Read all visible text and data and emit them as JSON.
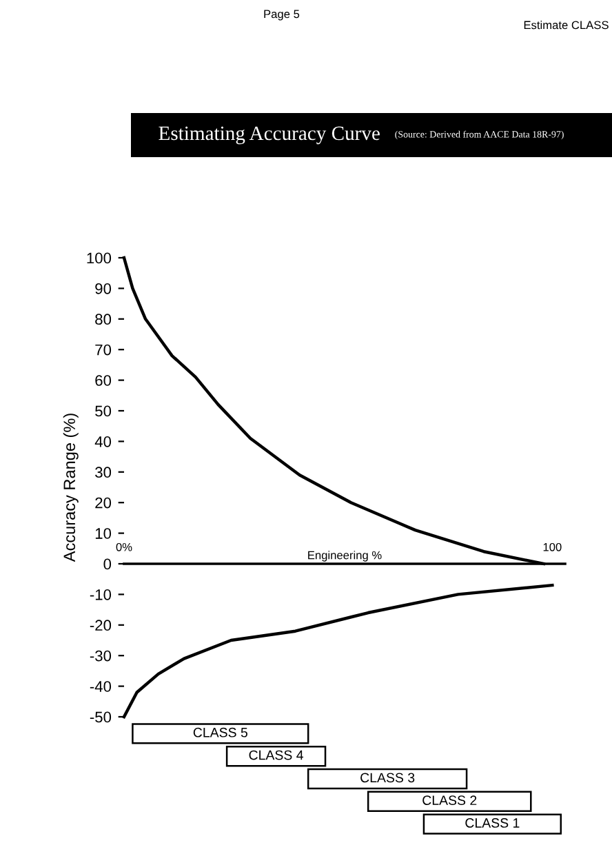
{
  "chart_data": [
    {
      "type": "line",
      "title": "Estimating Accuracy Curve",
      "subtitle": "(Source: Derived from AACE Data 18R-97)",
      "xlabel": "Engineering %",
      "ylabel": "Accuracy Range (%)",
      "annotations": [
        "Page 5",
        "Estimate CLASS"
      ],
      "series": [
        {
          "color": "#000000",
          "x": [
            0,
            2,
            5,
            11.2,
            16.7,
            22,
            29.5,
            41,
            53,
            68,
            84,
            98
          ],
          "values": [
            100,
            90,
            80,
            68,
            61,
            52,
            41,
            29,
            20,
            11,
            4,
            0
          ]
        },
        {
          "color": "#000000",
          "x": [
            0,
            3,
            8,
            14,
            25,
            40,
            57,
            78,
            100
          ],
          "values": [
            -50,
            -42,
            -36,
            -31,
            -25,
            -22,
            -16,
            -10,
            -7
          ]
        }
      ],
      "xlim": [
        0,
        103
      ],
      "xticks": [
        {
          "value": 0,
          "label": "0%"
        },
        {
          "value": 100,
          "label": "100"
        }
      ],
      "ylim": [
        -50,
        100
      ],
      "yticks": [
        -50,
        -40,
        -30,
        -20,
        -10,
        0,
        10,
        20,
        30,
        40,
        50,
        60,
        70,
        80,
        90,
        100
      ],
      "grid": false,
      "legend": false,
      "marker": "none",
      "line_style": "solid"
    },
    {
      "type": "bar",
      "orientation": "horizontal",
      "categories": [
        "CLASS 5",
        "CLASS 4",
        "CLASS 3",
        "CLASS 2",
        "CLASS 1"
      ],
      "base": [
        2,
        24,
        43,
        57,
        70
      ],
      "values": [
        41,
        23,
        37,
        38,
        32
      ],
      "color": "#ffffff",
      "xlim": [
        0,
        103
      ],
      "tick_labels": false
    }
  ]
}
